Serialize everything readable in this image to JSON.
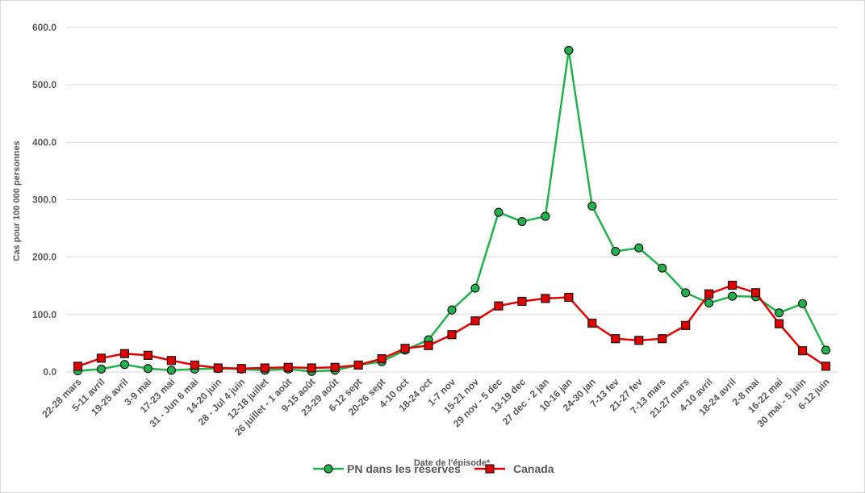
{
  "chart_data": {
    "type": "line",
    "xlabel": "Date de l'épisode*",
    "ylabel": "Cas pour 100 000 personnes",
    "ylim": [
      0,
      600
    ],
    "yticks": [
      "0.0",
      "100.0",
      "200.0",
      "300.0",
      "400.0",
      "500.0",
      "600.0"
    ],
    "grid": "horizontal",
    "legend_position": "bottom",
    "categories": [
      "22-28 mars",
      "5-11 avril",
      "19-25 avril",
      "3-9 mai",
      "17-23 mai",
      "31 - Jun 6 mai",
      "14-20 juin",
      "28 - Jul 4 juin",
      "12-18 juillet",
      "26 juillet - 1 août",
      "9-15 août",
      "23-29 août",
      "6-12 sept",
      "20-26 sept",
      "4-10 oct",
      "18-24 oct",
      "1-7 nov",
      "15-21 nov",
      "29 nov - 5 dec",
      "13-19 dec",
      "27 dec - 2 jan",
      "10-16 jan",
      "24-30 jan",
      "7-13 fev",
      "21-27 fev",
      "7-13 mars",
      "21-27 mars",
      "4-10 avril",
      "18-24 avril",
      "2-8 mai",
      "16-22 mai",
      "30 mai - 5 juin",
      "6-12 juin"
    ],
    "series": [
      {
        "name": "PN dans les réserves",
        "color": "#22b14c",
        "marker": "circle",
        "values": [
          2,
          5,
          13,
          6,
          3,
          5,
          6,
          5,
          3,
          5,
          1,
          3,
          12,
          18,
          38,
          56,
          108,
          146,
          278,
          262,
          271,
          560,
          289,
          210,
          216,
          181,
          138,
          120,
          132,
          131,
          103,
          119,
          38
        ]
      },
      {
        "name": "Canada",
        "color": "#e00000",
        "marker": "square",
        "values": [
          10,
          24,
          32,
          29,
          20,
          12,
          7,
          6,
          7,
          8,
          7,
          8,
          12,
          23,
          41,
          46,
          65,
          89,
          115,
          123,
          128,
          130,
          85,
          58,
          55,
          58,
          81,
          136,
          151,
          138,
          84,
          37,
          10
        ]
      }
    ]
  }
}
